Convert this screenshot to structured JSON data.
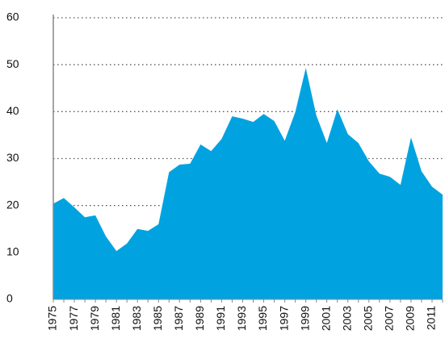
{
  "chart_data": {
    "type": "area",
    "categories": [
      "1975",
      null,
      "1977",
      null,
      "1979",
      null,
      "1981",
      null,
      "1983",
      null,
      "1985",
      null,
      "1987",
      null,
      "1989",
      null,
      "1991",
      null,
      "1993",
      null,
      "1995",
      null,
      "1997",
      null,
      "1999",
      null,
      "2001",
      null,
      "2003",
      null,
      "2005",
      null,
      "2007",
      null,
      "2009",
      null,
      "2011",
      null
    ],
    "values": [
      20.4,
      21.6,
      19.6,
      17.5,
      17.9,
      13.4,
      10.3,
      11.9,
      15,
      14.6,
      16,
      27.1,
      28.7,
      28.9,
      33,
      31.6,
      34.2,
      39,
      38.5,
      37.8,
      39.5,
      38,
      33.8,
      39.9,
      49.3,
      39.2,
      33.3,
      40.5,
      35.2,
      33.3,
      29.4,
      26.8,
      26.1,
      24.4,
      34.5,
      27.3,
      24,
      22.3
    ],
    "color": "#00a3e0",
    "ylim": [
      0,
      60
    ],
    "yticks": [
      0,
      10,
      20,
      30,
      40,
      50,
      60
    ],
    "grid": true
  }
}
